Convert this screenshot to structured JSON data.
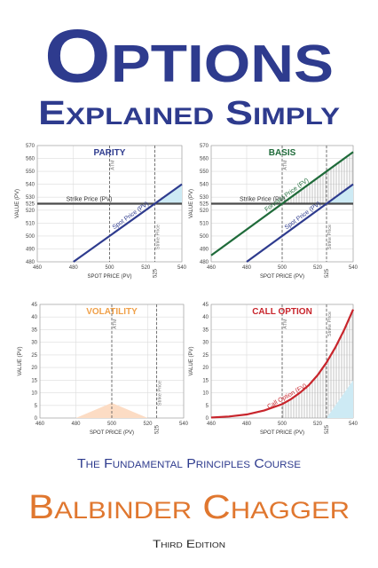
{
  "title": "Options",
  "subtitle": "Explained Simply",
  "course": "The Fundamental Principles Course",
  "author": "Balbinder Chagger",
  "edition": "Third Edition",
  "chart_data": [
    {
      "type": "line",
      "title": "PARITY",
      "title_color": "#2e3b8e",
      "xlabel": "SPOT PRICE (PV)",
      "ylabel": "VALUE (PV)",
      "xlim": [
        460,
        540
      ],
      "ylim": [
        480,
        570
      ],
      "xticks": [
        460,
        480,
        500,
        520,
        525,
        540
      ],
      "yticks": [
        480,
        490,
        500,
        510,
        520,
        525,
        530,
        540,
        550,
        560,
        570
      ],
      "grid": true,
      "vlines": [
        {
          "x": 500,
          "label": "ATM"
        },
        {
          "x": 525,
          "label": "Strike Price"
        }
      ],
      "areas": [
        {
          "color": "#cdeaf4",
          "x": [
            525,
            540
          ],
          "upper": [
            525,
            540
          ],
          "lower": [
            525,
            525
          ]
        }
      ],
      "series": [
        {
          "name": "Strike Price (PV)",
          "color": "#4a4a4a",
          "x": [
            460,
            540
          ],
          "values": [
            525,
            525
          ]
        },
        {
          "name": "Spot Price (PV)",
          "color": "#2e3b8e",
          "x": [
            480,
            540
          ],
          "values": [
            480,
            540
          ]
        }
      ]
    },
    {
      "type": "line",
      "title": "BASIS",
      "title_color": "#1f6b3a",
      "xlabel": "SPOT PRICE (PV)",
      "ylabel": "VALUE (PV)",
      "xlim": [
        460,
        540
      ],
      "ylim": [
        480,
        570
      ],
      "xticks": [
        460,
        480,
        500,
        520,
        525,
        540
      ],
      "yticks": [
        480,
        490,
        500,
        510,
        520,
        525,
        530,
        540,
        550,
        560,
        570
      ],
      "grid": true,
      "vlines": [
        {
          "x": 500,
          "label": "ATM"
        },
        {
          "x": 525,
          "label": "Strike Price"
        }
      ],
      "areas": [
        {
          "pattern": "hatch",
          "x": [
            500,
            540
          ],
          "upper": [
            525,
            565
          ],
          "lower": [
            525,
            525
          ]
        },
        {
          "color": "#cdeaf4",
          "x": [
            525,
            540
          ],
          "upper": [
            525,
            540
          ],
          "lower": [
            525,
            525
          ]
        }
      ],
      "series": [
        {
          "name": "Strike Price (PV)",
          "color": "#4a4a4a",
          "x": [
            460,
            540
          ],
          "values": [
            525,
            525
          ]
        },
        {
          "name": "Forward Price (FV)",
          "color": "#1f6b3a",
          "x": [
            460,
            540
          ],
          "values": [
            485,
            565
          ]
        },
        {
          "name": "Spot Price (PV)",
          "color": "#2e3b8e",
          "x": [
            480,
            540
          ],
          "values": [
            480,
            540
          ]
        }
      ]
    },
    {
      "type": "area",
      "title": "VOLATILITY",
      "title_color": "#f0a048",
      "xlabel": "SPOT PRICE (PV)",
      "ylabel": "VALUE (PV)",
      "xlim": [
        460,
        540
      ],
      "ylim": [
        0,
        45
      ],
      "xticks": [
        460,
        480,
        500,
        520,
        525,
        540
      ],
      "yticks": [
        0,
        5,
        10,
        15,
        20,
        25,
        30,
        35,
        40,
        45
      ],
      "grid": true,
      "vlines": [
        {
          "x": 500,
          "label": "ATM"
        },
        {
          "x": 525,
          "label": "Strike Price"
        }
      ],
      "areas": [
        {
          "color": "#fcdcc4",
          "x": [
            480,
            500,
            520
          ],
          "upper": [
            0,
            6,
            0
          ],
          "lower": [
            0,
            0,
            0
          ]
        }
      ],
      "series": []
    },
    {
      "type": "line",
      "title": "CALL OPTION",
      "title_color": "#c8252c",
      "xlabel": "SPOT PRICE (PV)",
      "ylabel": "VALUE (PV)",
      "xlim": [
        460,
        540
      ],
      "ylim": [
        0,
        45
      ],
      "xticks": [
        460,
        480,
        500,
        520,
        525,
        540
      ],
      "yticks": [
        0,
        5,
        10,
        15,
        20,
        25,
        30,
        35,
        40,
        45
      ],
      "grid": true,
      "vlines": [
        {
          "x": 500,
          "label": "ATM"
        },
        {
          "x": 525,
          "label": "Strike Price"
        }
      ],
      "areas": [
        {
          "pattern": "hatch",
          "x": [
            500,
            505,
            510,
            515,
            520,
            525,
            530,
            535,
            540
          ],
          "upper": [
            5.5,
            7.5,
            10,
            13,
            17,
            22,
            28,
            35,
            43
          ],
          "lower": [
            0,
            0,
            0,
            0,
            0,
            0,
            5,
            10,
            15
          ]
        },
        {
          "color": "#cdeaf4",
          "x": [
            525,
            540
          ],
          "upper": [
            0,
            15
          ],
          "lower": [
            0,
            0
          ]
        }
      ],
      "series": [
        {
          "name": "Call Option (FV)",
          "color": "#c8252c",
          "x": [
            460,
            470,
            480,
            490,
            500,
            505,
            510,
            515,
            520,
            525,
            530,
            535,
            540
          ],
          "values": [
            0.2,
            0.6,
            1.4,
            3,
            5.5,
            7.5,
            10,
            13,
            17,
            22,
            28,
            35,
            43
          ]
        }
      ]
    }
  ]
}
